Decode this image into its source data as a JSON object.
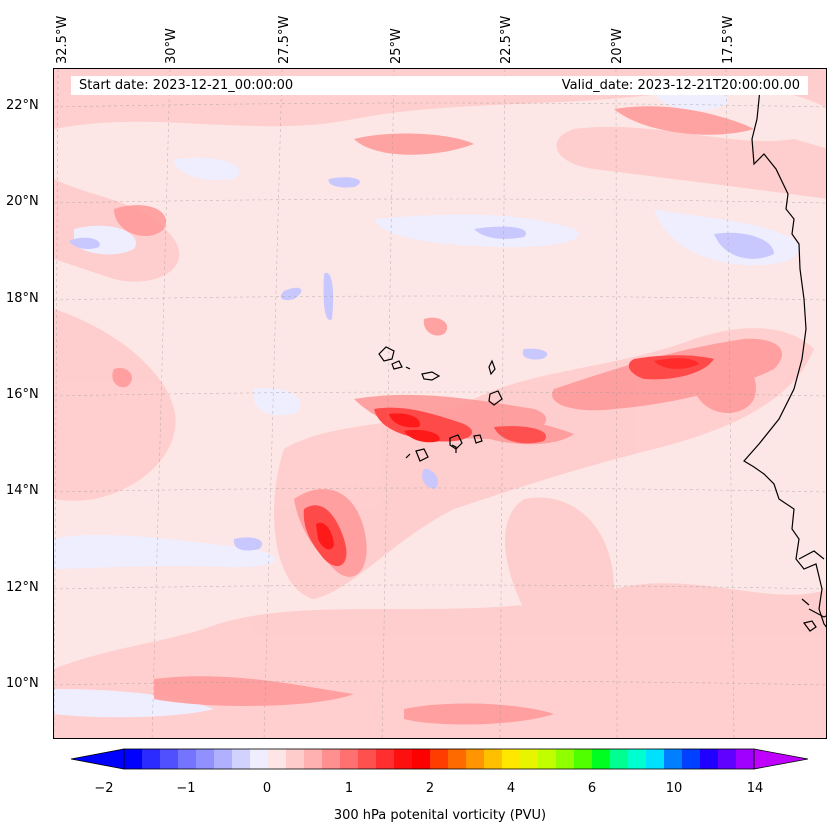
{
  "header": {
    "start_date": "Start date: 2023-12-21_00:00:00",
    "valid_date": "Valid_date: 2023-12-21T20:00:00.00"
  },
  "axes": {
    "lon_labels": [
      "32.5°W",
      "30°W",
      "27.5°W",
      "25°W",
      "22.5°W",
      "20°W",
      "17.5°W"
    ],
    "lat_labels": [
      "22°N",
      "20°N",
      "18°N",
      "16°N",
      "14°N",
      "12°N",
      "10°N"
    ]
  },
  "colorbar": {
    "label": "300 hPa potenital vorticity (PVU)",
    "ticks": [
      "−2",
      "−1",
      "0",
      "1",
      "2",
      "4",
      "6",
      "10",
      "14"
    ],
    "colors": [
      "#0000ff",
      "#2b2bff",
      "#5050ff",
      "#7474ff",
      "#9090ff",
      "#b0b0ff",
      "#d2d2ff",
      "#eeeeff",
      "#ffe6e6",
      "#ffcccc",
      "#ffb0b0",
      "#ff9090",
      "#ff7070",
      "#ff5050",
      "#ff2f2f",
      "#ff1010",
      "#ff0000",
      "#ff3d00",
      "#ff6a00",
      "#ff9500",
      "#ffc000",
      "#ffe800",
      "#e8f500",
      "#c0ff00",
      "#90ff00",
      "#50ff00",
      "#00ff20",
      "#00ff90",
      "#00ffd0",
      "#00e0ff",
      "#0080ff",
      "#0040ff",
      "#2000ff",
      "#6000ff",
      "#a000ff"
    ],
    "under_color": "#0000ff",
    "over_color": "#c000ff"
  },
  "colors": {
    "base_fill": "#fde6e6",
    "light_pink": "#ffcccc",
    "pink": "#ff9a9a",
    "red": "#ff4040",
    "dark_red": "#ff1a1a",
    "light_blue": "#eeeeff",
    "blue": "#c8c8ff",
    "coast": "#000000"
  }
}
